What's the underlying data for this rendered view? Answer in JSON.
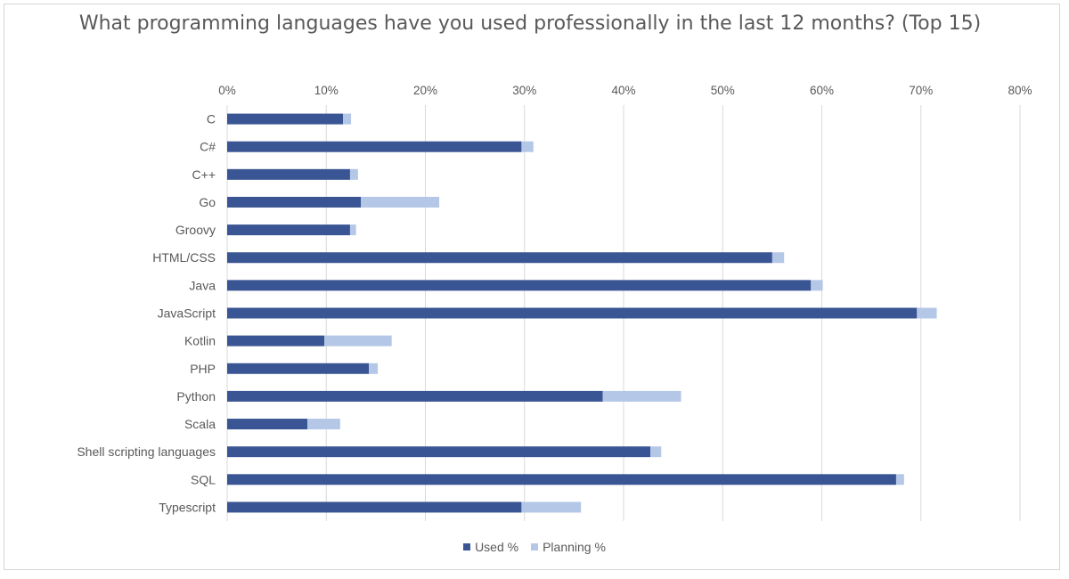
{
  "chart_data": {
    "type": "bar",
    "orientation": "horizontal",
    "stacked": true,
    "title": "What programming languages have you used professionally in the last 12 months? (Top 15)",
    "categories": [
      "C",
      "C#",
      "C++",
      "Go",
      "Groovy",
      "HTML/CSS",
      "Java",
      "JavaScript",
      "Kotlin",
      "PHP",
      "Python",
      "Scala",
      "Shell scripting languages",
      "SQL",
      "Typescript"
    ],
    "series": [
      {
        "name": "Used %",
        "color": "#3a5593",
        "values": [
          11.7,
          29.7,
          12.4,
          13.5,
          12.4,
          55.0,
          58.9,
          69.6,
          9.8,
          14.3,
          37.9,
          8.1,
          42.7,
          67.5,
          29.7
        ]
      },
      {
        "name": "Planning %",
        "color": "#b4c7e7",
        "values": [
          0.8,
          1.2,
          0.8,
          7.9,
          0.6,
          1.2,
          1.2,
          2.0,
          6.8,
          0.9,
          7.9,
          3.3,
          1.1,
          0.8,
          6.0
        ]
      }
    ],
    "xlim": [
      0,
      80
    ],
    "x_ticks": [
      "0%",
      "10%",
      "20%",
      "30%",
      "40%",
      "50%",
      "60%",
      "70%",
      "80%"
    ],
    "x_axis_position": "top",
    "grid": true,
    "legend_position": "bottom"
  }
}
